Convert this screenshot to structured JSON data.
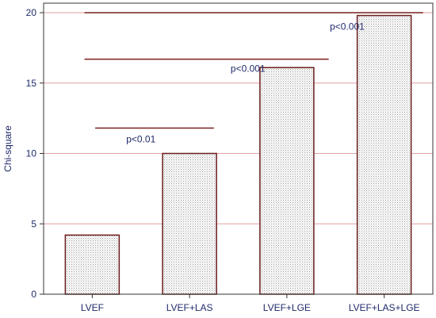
{
  "chart_data": {
    "type": "bar",
    "categories": [
      "LVEF",
      "LVEF+LAS",
      "LVEF+LGE",
      "LVEF+LAS+LGE"
    ],
    "values": [
      4.2,
      10.0,
      16.1,
      19.8
    ],
    "ylabel": "Chi-square",
    "xlabel": "",
    "ylim": [
      0,
      20
    ],
    "yticks": [
      0,
      5,
      10,
      15,
      20
    ],
    "grid": true,
    "colors": {
      "bar_fill": "#d9d9d9",
      "bar_stroke": "#6b1c1c",
      "gridline": "#e3a0a0",
      "bracket": "#7a1f1f",
      "text": "#1f2a6b",
      "axis": "#333333"
    },
    "annotations": [
      {
        "text": "p<0.01",
        "x": 0.5,
        "y": 10.8
      },
      {
        "text": "p<0.001",
        "x": 1.6,
        "y": 15.8
      },
      {
        "text": "p<0.001",
        "x": 2.62,
        "y": 18.8
      }
    ],
    "brackets": [
      {
        "from": 0.03,
        "to": 1.25,
        "y": 11.8
      },
      {
        "from": -0.08,
        "to": 2.43,
        "y": 16.7
      },
      {
        "from": -0.08,
        "to": 3.4,
        "y": 20
      }
    ]
  }
}
